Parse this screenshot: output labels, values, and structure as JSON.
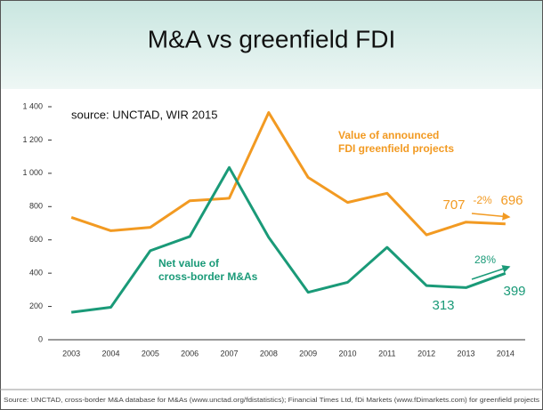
{
  "chart_data": {
    "type": "line",
    "title": "M&A vs greenfield FDI",
    "source_note": "source: UNCTAD, WIR 2015",
    "footer": "Source: UNCTAD, cross-border M&A database for M&As (www.unctad.org/fdistatistics); Financial Times Ltd, fDi Markets (www.fDimarkets.com) for greenfield projects",
    "categories": [
      "2003",
      "2004",
      "2005",
      "2006",
      "2007",
      "2008",
      "2009",
      "2010",
      "2011",
      "2012",
      "2013",
      "2014"
    ],
    "series": [
      {
        "name": "Value of announced FDI greenfield projects",
        "color": "#f29a22",
        "values": [
          735,
          655,
          675,
          835,
          850,
          1365,
          975,
          825,
          880,
          630,
          707,
          696
        ]
      },
      {
        "name": "Net value of cross-border M&As",
        "color": "#1a9a78",
        "values": [
          165,
          195,
          535,
          620,
          1035,
          615,
          285,
          345,
          555,
          325,
          313,
          399
        ]
      }
    ],
    "series_labels": [
      [
        "Value of announced",
        "FDI greenfield projects"
      ],
      [
        "Net value of",
        "cross-border M&As"
      ]
    ],
    "annotations": [
      {
        "text": "-2%",
        "color": "#f29a22"
      },
      {
        "text": "28%",
        "color": "#1a9a78"
      }
    ],
    "ylim": [
      0,
      1400
    ],
    "yticks": [
      0,
      200,
      400,
      600,
      800,
      {
        "value": 1000,
        "label": "1 000"
      },
      {
        "value": 1200,
        "label": "1 200"
      },
      {
        "value": 1400,
        "label": "1 400"
      }
    ],
    "grid": false
  }
}
